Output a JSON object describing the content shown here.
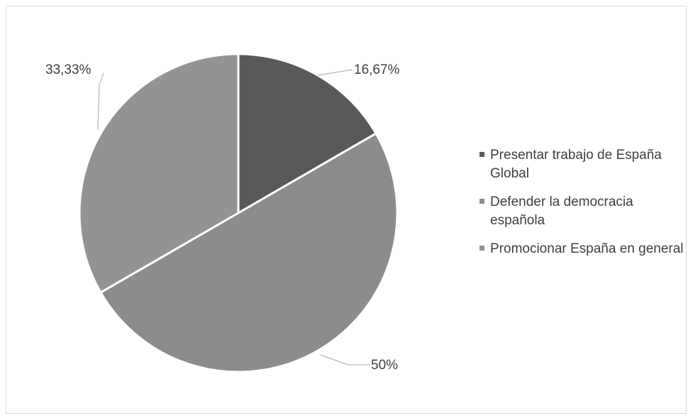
{
  "chart_data": {
    "type": "pie",
    "title": "",
    "legend_position": "right",
    "slices": [
      {
        "label": "Presentar trabajo de España Global",
        "value": 16.67,
        "display": "16,67%",
        "color": "#595959"
      },
      {
        "label": "Defender la democracia española",
        "value": 50,
        "display": "50%",
        "color": "#8c8c8c"
      },
      {
        "label": "Promocionar España en general",
        "value": 33.33,
        "display": "33,33%",
        "color": "#939393"
      }
    ]
  }
}
